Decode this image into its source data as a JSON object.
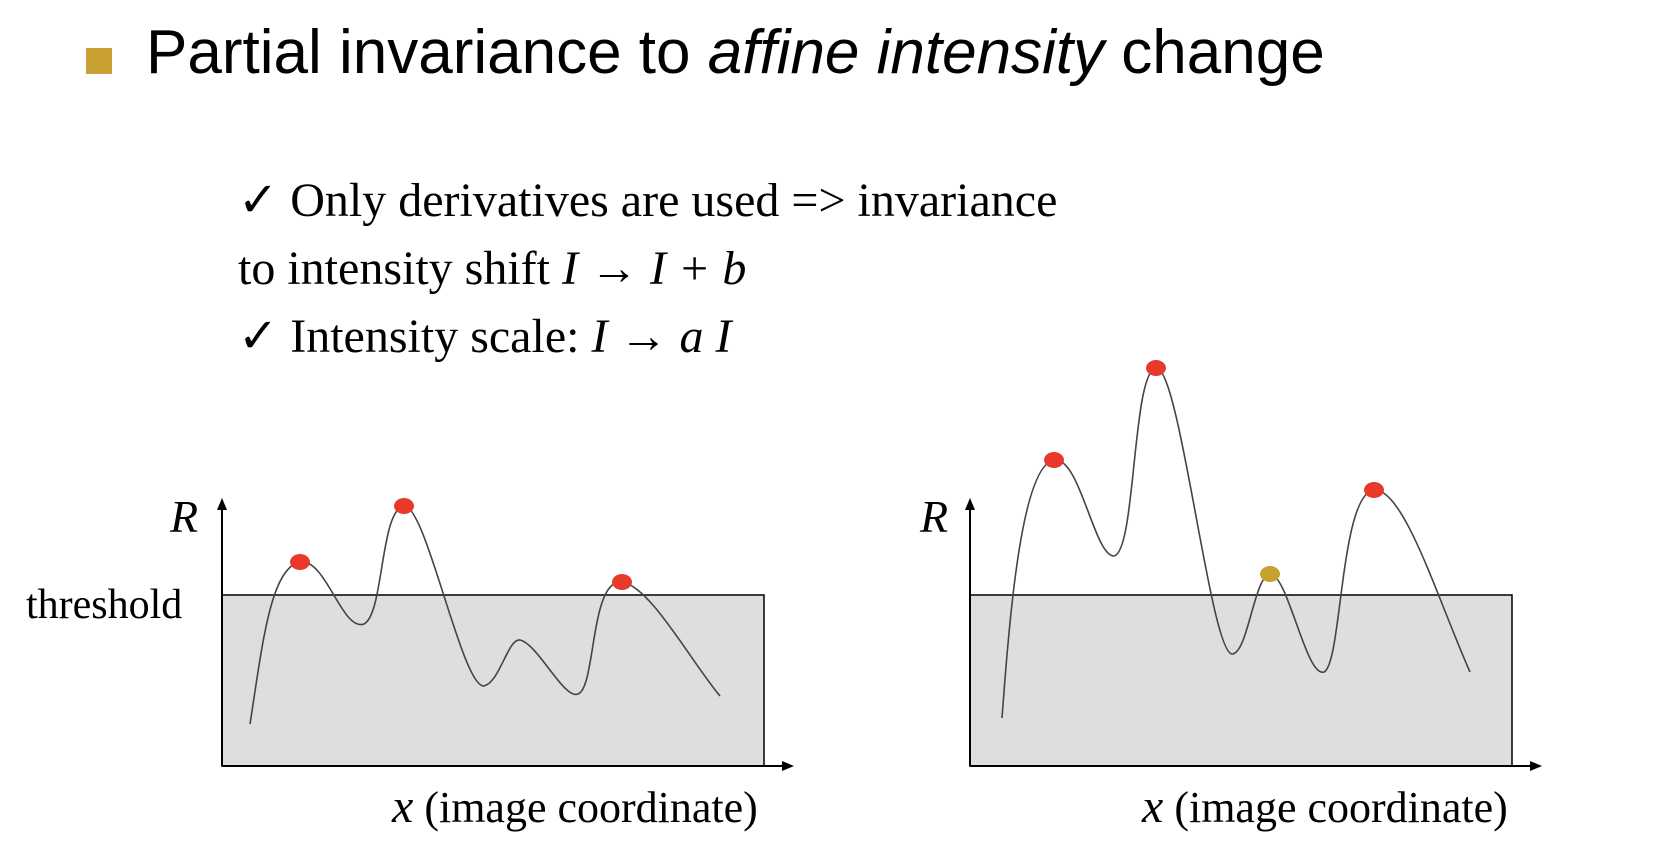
{
  "title": {
    "part1": "Partial invariance to ",
    "part2": "affine intensity",
    "part3": " change"
  },
  "checklist": {
    "check_glyph": "✓",
    "line1": "Only derivatives are used => invariance",
    "line2_prefix": "to intensity shift ",
    "line2_math": "I → I + b",
    "line3_prefix": "Intensity scale: ",
    "line3_math": "I → a I"
  },
  "plots": {
    "left": {
      "y_axis_label": "R",
      "threshold_label": "threshold",
      "x_axis_var": "x",
      "x_axis_desc": " (image coordinate)"
    },
    "right": {
      "y_axis_label": "R",
      "x_axis_var": "x",
      "x_axis_desc": " (image coordinate)"
    }
  },
  "colors": {
    "bullet": "#c9a032",
    "peak_above": "#e8392a",
    "peak_below": "#c9a032",
    "threshold_fill": "#dedede"
  }
}
